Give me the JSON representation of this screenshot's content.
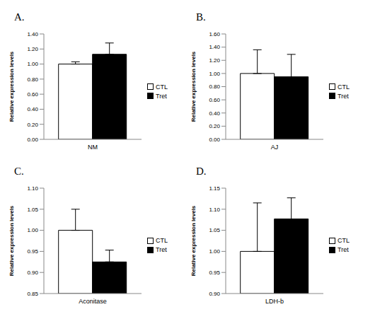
{
  "chart_data": [
    {
      "type": "bar",
      "title": "A.",
      "ylabel": "Relative expression levels",
      "categories": [
        "NM"
      ],
      "series": [
        {
          "name": "CTL",
          "color": "#ffffff",
          "values": [
            1.0
          ],
          "errors": [
            0.03
          ]
        },
        {
          "name": "Tret",
          "color": "#000000",
          "values": [
            1.13
          ],
          "errors": [
            0.15
          ]
        }
      ],
      "ylim": [
        0,
        1.4
      ],
      "yticks": [
        {
          "value": 0,
          "label": "0.00"
        },
        {
          "value": 0.2,
          "label": "0.20"
        },
        {
          "value": 0.4,
          "label": "0.40"
        },
        {
          "value": 0.6,
          "label": "0.60"
        },
        {
          "value": 0.8,
          "label": "0.80"
        },
        {
          "value": 1.0,
          "label": "1.00"
        },
        {
          "value": 1.2,
          "label": "1.20"
        },
        {
          "value": 1.4,
          "label": "1.40"
        }
      ],
      "legend": "right"
    },
    {
      "type": "bar",
      "title": "B.",
      "ylabel": "Relative expression levels",
      "categories": [
        "AJ"
      ],
      "series": [
        {
          "name": "CTL",
          "color": "#ffffff",
          "values": [
            1.0
          ],
          "errors": [
            0.36
          ]
        },
        {
          "name": "Tret",
          "color": "#000000",
          "values": [
            0.95
          ],
          "errors": [
            0.34
          ]
        }
      ],
      "ylim": [
        0,
        1.6
      ],
      "yticks": [
        {
          "value": 0,
          "label": "0.00"
        },
        {
          "value": 0.2,
          "label": "0.20"
        },
        {
          "value": 0.4,
          "label": "0.40"
        },
        {
          "value": 0.6,
          "label": "0.60"
        },
        {
          "value": 0.8,
          "label": "0.80"
        },
        {
          "value": 1.0,
          "label": "1.00"
        },
        {
          "value": 1.2,
          "label": "1.20"
        },
        {
          "value": 1.4,
          "label": "1.40"
        },
        {
          "value": 1.6,
          "label": "1.60"
        }
      ],
      "legend": "right"
    },
    {
      "type": "bar",
      "title": "C.",
      "ylabel": "Relative expression levels",
      "categories": [
        "Aconitase"
      ],
      "series": [
        {
          "name": "CTL",
          "color": "#ffffff",
          "values": [
            1.0
          ],
          "errors": [
            0.05
          ]
        },
        {
          "name": "Tret",
          "color": "#000000",
          "values": [
            0.925
          ],
          "errors": [
            0.028
          ]
        }
      ],
      "ylim": [
        0.85,
        1.1
      ],
      "yticks": [
        {
          "value": 0.85,
          "label": "0.85"
        },
        {
          "value": 0.9,
          "label": "0.90"
        },
        {
          "value": 0.95,
          "label": "0.95"
        },
        {
          "value": 1.0,
          "label": "1.00"
        },
        {
          "value": 1.05,
          "label": "1.05"
        },
        {
          "value": 1.1,
          "label": "1.10"
        }
      ],
      "legend": "right"
    },
    {
      "type": "bar",
      "title": "D.",
      "ylabel": "Relative expression levels",
      "categories": [
        "LDH-b"
      ],
      "series": [
        {
          "name": "CTL",
          "color": "#ffffff",
          "values": [
            1.0
          ],
          "errors": [
            0.115
          ]
        },
        {
          "name": "Tret",
          "color": "#000000",
          "values": [
            1.077
          ],
          "errors": [
            0.05
          ]
        }
      ],
      "ylim": [
        0.9,
        1.15
      ],
      "yticks": [
        {
          "value": 0.9,
          "label": "0.90"
        },
        {
          "value": 0.95,
          "label": "0.95"
        },
        {
          "value": 1.0,
          "label": "1.00"
        },
        {
          "value": 1.05,
          "label": "1.05"
        },
        {
          "value": 1.1,
          "label": "1.10"
        },
        {
          "value": 1.15,
          "label": "1.15"
        }
      ],
      "legend": "right"
    }
  ]
}
